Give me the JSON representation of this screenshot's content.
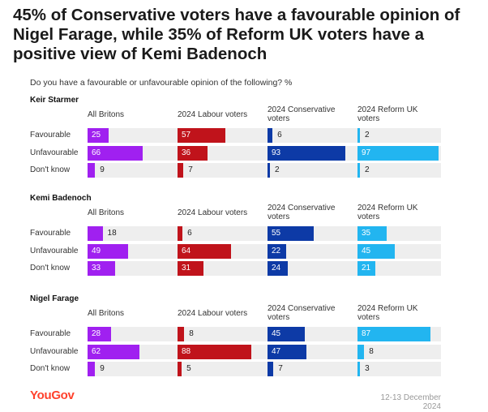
{
  "header": {
    "title": "45% of Conservative voters have a favourable opinion of Nigel Farage, while 35% of Reform UK voters have a positive view of Kemi Badenoch",
    "subtitle": "Do you have a favourable or unfavourable opinion of the following? %"
  },
  "footer": {
    "logo": "YouGov",
    "date": "12-13 December 2024"
  },
  "colors": {
    "All Britons": "#a020f0",
    "2024 Labour voters": "#c0131b",
    "2024 Conservative voters": "#0d3aa6",
    "2024 Reform UK voters": "#22b5f0"
  },
  "chart_data": {
    "type": "bar",
    "orientation": "horizontal",
    "xlim": [
      0,
      100
    ],
    "grid": false,
    "legend": "none",
    "groups": [
      "All Britons",
      "2024 Labour voters",
      "2024 Conservative voters",
      "2024 Reform UK voters"
    ],
    "categories": [
      "Favourable",
      "Unfavourable",
      "Don't know"
    ],
    "panels": [
      {
        "name": "Keir Starmer",
        "series": [
          {
            "name": "All Britons",
            "values": [
              25,
              66,
              9
            ]
          },
          {
            "name": "2024 Labour voters",
            "values": [
              57,
              36,
              7
            ]
          },
          {
            "name": "2024 Conservative voters",
            "values": [
              6,
              93,
              2
            ]
          },
          {
            "name": "2024 Reform UK voters",
            "values": [
              2,
              97,
              2
            ]
          }
        ]
      },
      {
        "name": "Kemi Badenoch",
        "series": [
          {
            "name": "All Britons",
            "values": [
              18,
              49,
              33
            ]
          },
          {
            "name": "2024 Labour voters",
            "values": [
              6,
              64,
              31
            ]
          },
          {
            "name": "2024 Conservative voters",
            "values": [
              55,
              22,
              24
            ]
          },
          {
            "name": "2024 Reform UK voters",
            "values": [
              35,
              45,
              21
            ]
          }
        ]
      },
      {
        "name": "Nigel Farage",
        "series": [
          {
            "name": "All Britons",
            "values": [
              28,
              62,
              9
            ]
          },
          {
            "name": "2024 Labour voters",
            "values": [
              8,
              88,
              5
            ]
          },
          {
            "name": "2024 Conservative voters",
            "values": [
              45,
              47,
              7
            ]
          },
          {
            "name": "2024 Reform UK voters",
            "values": [
              87,
              8,
              3
            ]
          }
        ]
      }
    ]
  }
}
